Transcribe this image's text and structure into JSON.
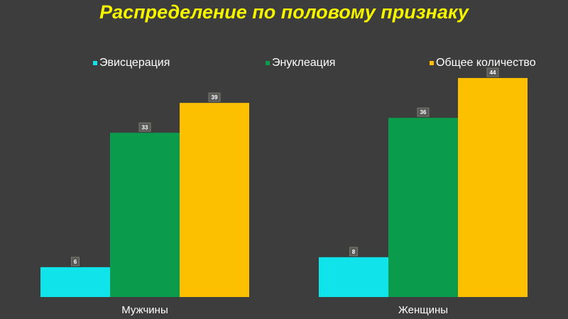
{
  "chart_data": {
    "type": "bar",
    "title": "Распределение по половому признаку",
    "categories": [
      "Мужчины",
      "Женщины"
    ],
    "series": [
      {
        "name": "Эвисцерация",
        "values": [
          6,
          8
        ],
        "color": "#10e4ea"
      },
      {
        "name": "Энуклеация",
        "values": [
          33,
          36
        ],
        "color": "#0a9b4c"
      },
      {
        "name": "Общее количество",
        "values": [
          39,
          44
        ],
        "color": "#fcc000"
      }
    ],
    "ylim": [
      0,
      46
    ],
    "grid": false,
    "legend_position": "top",
    "xlabel": "",
    "ylabel": ""
  }
}
